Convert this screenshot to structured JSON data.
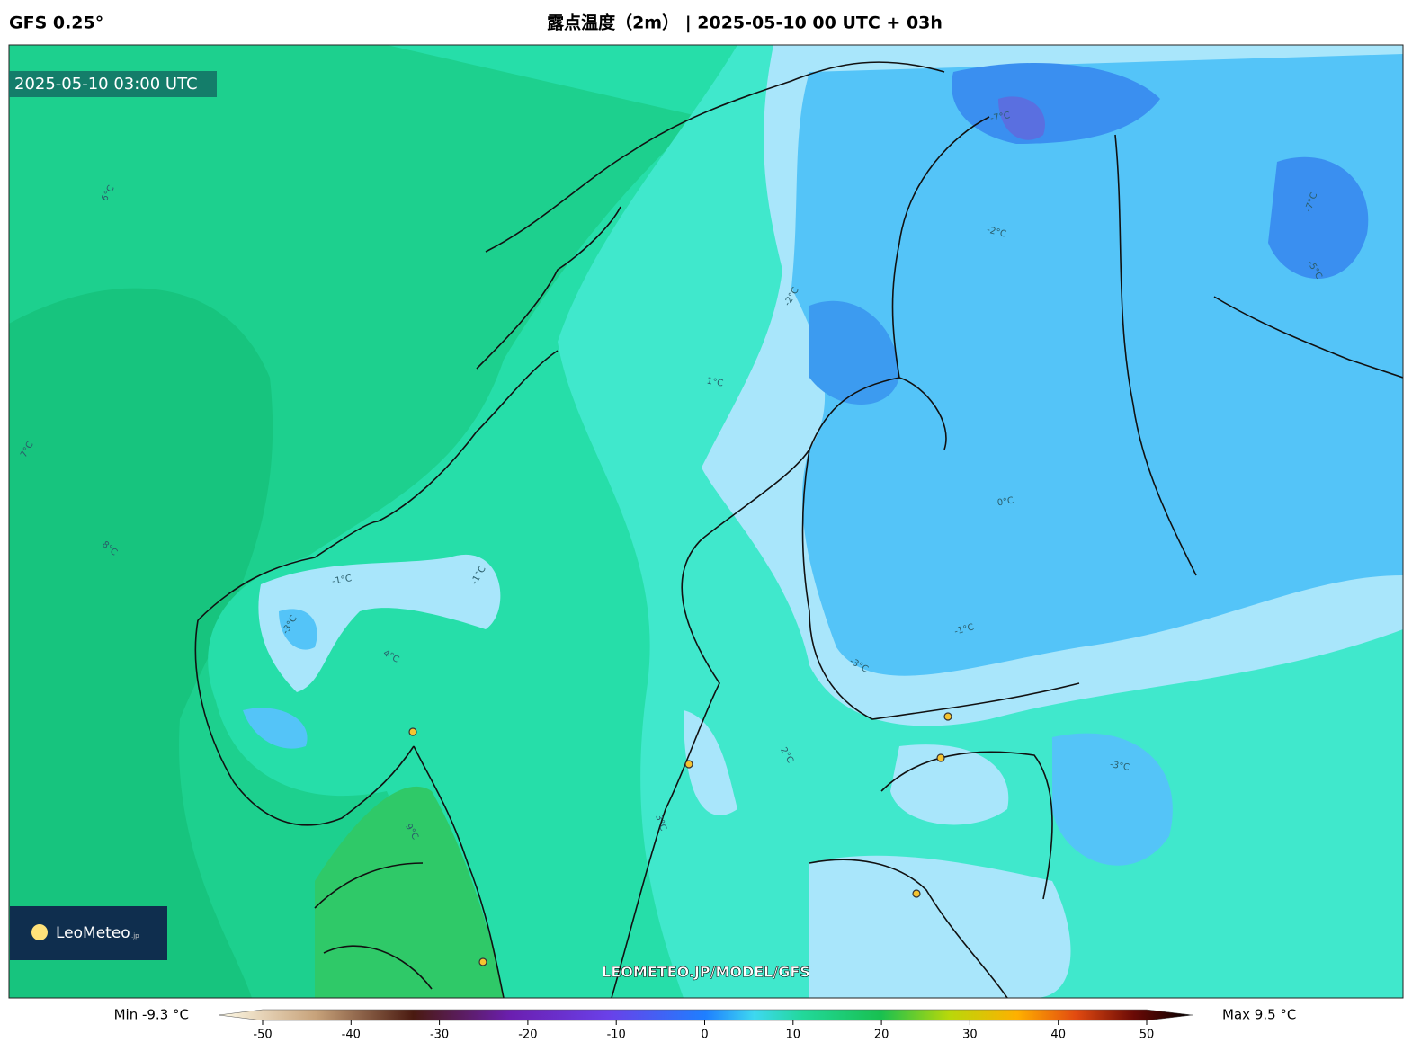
{
  "header": {
    "model": "GFS 0.25°",
    "title": "露点温度（2m） | 2025-05-10 00 UTC + 03h"
  },
  "map": {
    "timestamp": "2025-05-10 03:00 UTC",
    "logo": "LeoMeteo",
    "logo_suffix": ".jp",
    "watermark": "LEOMETEO.JP/MODEL/GFS",
    "contour_labels": [
      "6°C",
      "7°C",
      "8°C",
      "-1°C",
      "-3°C",
      "-1°C",
      "4°C",
      "9°C",
      "-2°C",
      "-2°C",
      "-1°C",
      "-3°C",
      "-7°C",
      "-7°C",
      "1°C",
      "0°C",
      "3°C",
      "2°C",
      "-5°C",
      "-3°C"
    ]
  },
  "colorbar": {
    "min_label": "Min -9.3 °C",
    "max_label": "Max 9.5 °C",
    "range": [
      -50,
      50
    ],
    "ticks": [
      -50,
      -40,
      -30,
      -20,
      -10,
      0,
      10,
      20,
      30,
      40,
      50
    ]
  }
}
